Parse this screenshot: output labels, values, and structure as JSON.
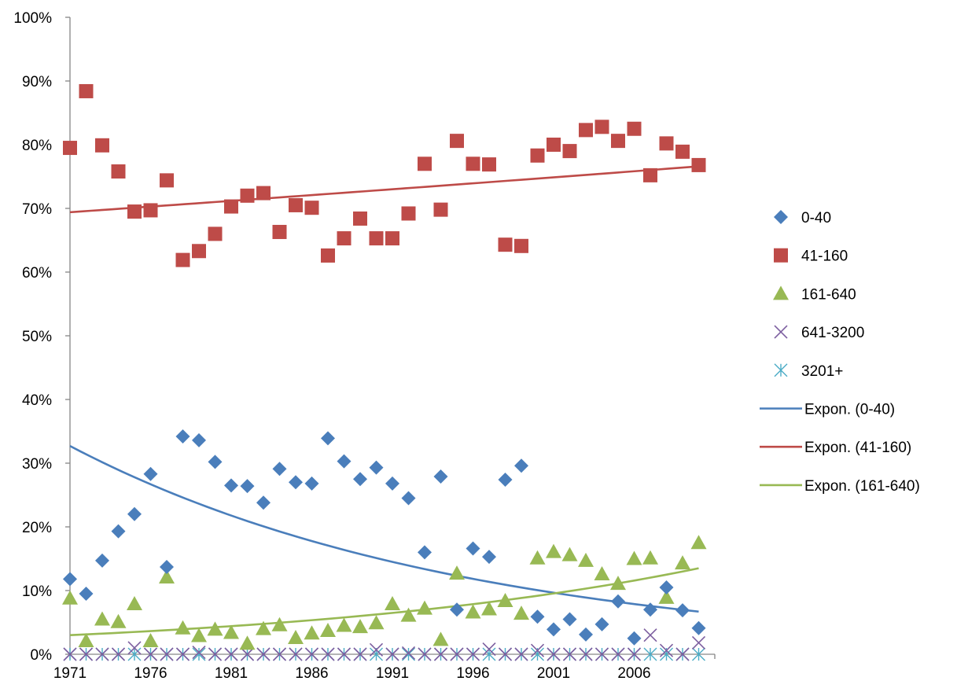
{
  "chart_data": {
    "type": "scatter",
    "title": "",
    "xlabel": "",
    "ylabel": "",
    "xlim": [
      1971,
      2010
    ],
    "ylim": [
      0,
      1
    ],
    "grid": false,
    "legend_position": "right",
    "x_ticks": [
      "1971",
      "1976",
      "1981",
      "1986",
      "1991",
      "1996",
      "2001",
      "2006"
    ],
    "y_ticks": [
      "0%",
      "10%",
      "20%",
      "30%",
      "40%",
      "50%",
      "60%",
      "70%",
      "80%",
      "90%",
      "100%"
    ],
    "x": [
      1971,
      1972,
      1973,
      1974,
      1975,
      1976,
      1977,
      1978,
      1979,
      1980,
      1981,
      1982,
      1983,
      1984,
      1985,
      1986,
      1987,
      1988,
      1989,
      1990,
      1991,
      1992,
      1993,
      1994,
      1995,
      1996,
      1997,
      1998,
      1999,
      2000,
      2001,
      2002,
      2003,
      2004,
      2005,
      2006,
      2007,
      2008,
      2009,
      2010
    ],
    "series": [
      {
        "name": "0-40",
        "marker": "diamond",
        "color": "#4a7ebb",
        "values": [
          0.118,
          0.095,
          0.147,
          0.193,
          0.22,
          0.283,
          0.137,
          0.342,
          0.336,
          0.302,
          0.265,
          0.264,
          0.238,
          0.291,
          0.27,
          0.268,
          0.339,
          0.303,
          0.275,
          0.293,
          0.268,
          0.245,
          0.16,
          0.279,
          0.07,
          0.166,
          0.153,
          0.274,
          0.296,
          0.059,
          0.039,
          0.055,
          0.031,
          0.047,
          0.083,
          0.025,
          0.07,
          0.105,
          0.069,
          0.041
        ]
      },
      {
        "name": "41-160",
        "marker": "square",
        "color": "#be4b48",
        "values": [
          0.795,
          0.884,
          0.799,
          0.758,
          0.695,
          0.697,
          0.744,
          0.619,
          0.633,
          0.66,
          0.703,
          0.72,
          0.724,
          0.663,
          0.705,
          0.701,
          0.626,
          0.653,
          0.684,
          0.653,
          0.653,
          0.692,
          0.77,
          0.698,
          0.806,
          0.77,
          0.769,
          0.643,
          0.641,
          0.783,
          0.8,
          0.79,
          0.823,
          0.828,
          0.806,
          0.825,
          0.752,
          0.802,
          0.789,
          0.768
        ]
      },
      {
        "name": "161-640",
        "marker": "triangle",
        "color": "#98b954",
        "values": [
          0.088,
          0.021,
          0.055,
          0.051,
          0.079,
          0.021,
          0.121,
          0.041,
          0.029,
          0.039,
          0.034,
          0.017,
          0.04,
          0.046,
          0.026,
          0.033,
          0.037,
          0.045,
          0.043,
          0.049,
          0.079,
          0.061,
          0.072,
          0.023,
          0.127,
          0.066,
          0.071,
          0.084,
          0.064,
          0.151,
          0.161,
          0.156,
          0.147,
          0.126,
          0.111,
          0.15,
          0.151,
          0.089,
          0.143,
          0.175
        ]
      },
      {
        "name": "641-3200",
        "marker": "x",
        "color": "#7d5fa0",
        "values": [
          0,
          0,
          0,
          0,
          0.01,
          0,
          0,
          0,
          0.003,
          0,
          0,
          0,
          0,
          0,
          0,
          0,
          0,
          0,
          0,
          0.007,
          0,
          0.002,
          0,
          0,
          0,
          0,
          0.008,
          0,
          0,
          0.006,
          0,
          0,
          0,
          0,
          0,
          0,
          0.03,
          0.006,
          0,
          0.018
        ]
      },
      {
        "name": "3201+",
        "marker": "asterisk",
        "color": "#4bacc6",
        "values": [
          0,
          0,
          0,
          0,
          0,
          0,
          0,
          0,
          0,
          0,
          0,
          0,
          0,
          0,
          0,
          0,
          0,
          0,
          0,
          0,
          0,
          0,
          0,
          0,
          0,
          0,
          0,
          0,
          0,
          0,
          0,
          0,
          0,
          0,
          0,
          0,
          0,
          0,
          0,
          0
        ]
      }
    ],
    "trendlines": [
      {
        "name": "Expon. (0-40)",
        "type": "exponential",
        "color": "#4a7ebb",
        "start": [
          1971,
          0.327
        ],
        "end": [
          2010,
          0.067
        ]
      },
      {
        "name": "Expon. (41-160)",
        "type": "exponential",
        "color": "#be4b48",
        "start": [
          1971,
          0.694
        ],
        "end": [
          2010,
          0.766
        ]
      },
      {
        "name": "Expon. (161-640)",
        "type": "exponential",
        "color": "#98b954",
        "start": [
          1971,
          0.03
        ],
        "end": [
          2010,
          0.135
        ]
      }
    ]
  }
}
